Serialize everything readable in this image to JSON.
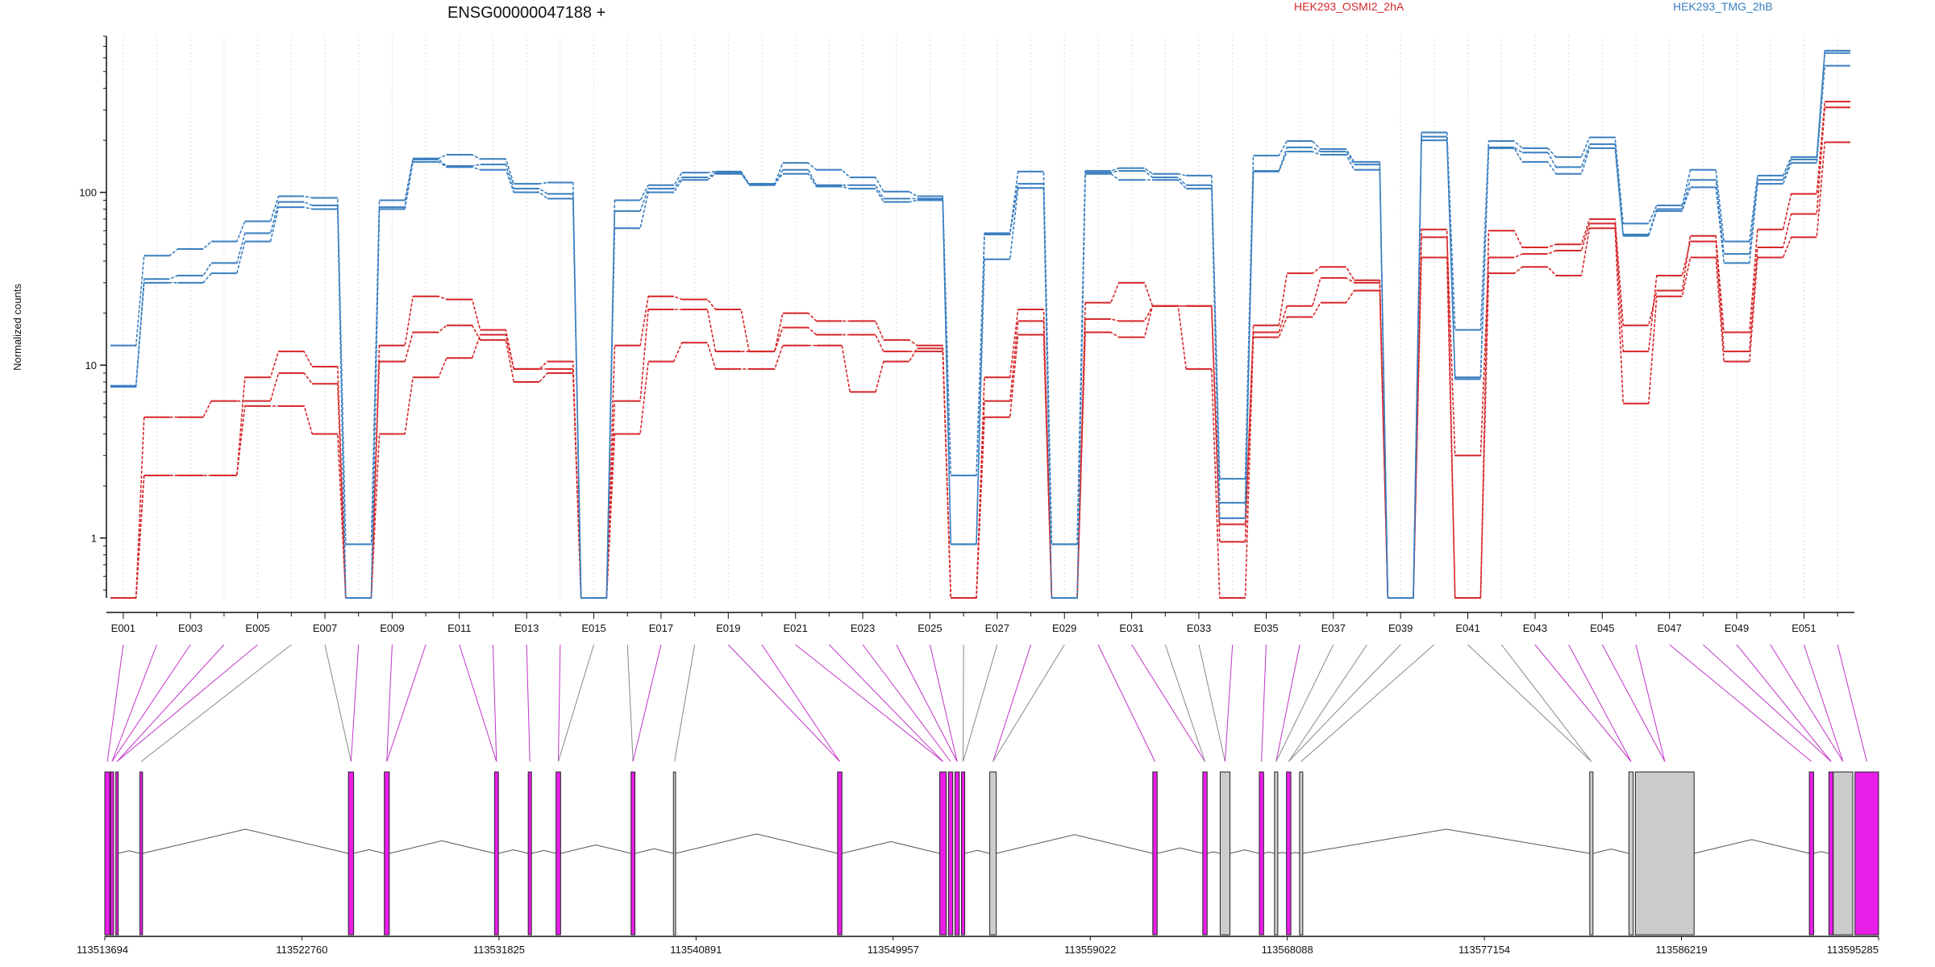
{
  "chart_data": {
    "type": "line",
    "title": "ENSG00000047188 +",
    "ylabel": "Normalized counts",
    "yscale": "log",
    "ylim": [
      0.45,
      800
    ],
    "yticks": [
      1,
      10,
      100
    ],
    "grid": "vertical dotted at exon bins",
    "legend": [
      {
        "name": "HEK293_OSMI2_2hA",
        "color": "#d6282b"
      },
      {
        "name": "HEK293_TMG_2hB",
        "color": "#3b7fc0"
      }
    ],
    "exons": [
      "E001",
      "E002",
      "E003",
      "E004",
      "E005",
      "E006",
      "E007",
      "E008",
      "E009",
      "E010",
      "E011",
      "E012",
      "E013",
      "E014",
      "E015",
      "E016",
      "E017",
      "E018",
      "E019",
      "E020",
      "E021",
      "E022",
      "E023",
      "E024",
      "E025",
      "E026",
      "E027",
      "E028",
      "E029",
      "E030",
      "E031",
      "E032",
      "E033",
      "E034",
      "E035",
      "E036",
      "E037",
      "E038",
      "E039",
      "E040",
      "E041",
      "E042",
      "E043",
      "E044",
      "E045",
      "E046",
      "E047",
      "E048",
      "E049",
      "E050",
      "E051",
      "E052"
    ],
    "exon_labels_shown": [
      "E001",
      "E003",
      "E005",
      "E007",
      "E009",
      "E011",
      "E013",
      "E015",
      "E017",
      "E019",
      "E021",
      "E023",
      "E025",
      "E027",
      "E029",
      "E031",
      "E033",
      "E035",
      "E037",
      "E039",
      "E041",
      "E043",
      "E045",
      "E047",
      "E049",
      "E051"
    ],
    "series": [
      {
        "group": "HEK293_OSMI2_2hA",
        "color": "#d6282b",
        "values": [
          0.45,
          2.3,
          2.3,
          2.3,
          5.8,
          5.8,
          4.0,
          0.45,
          4.0,
          8.5,
          11.0,
          15.0,
          9.5,
          9.5,
          0.45,
          4.0,
          10.5,
          13.5,
          9.5,
          9.5,
          13.0,
          13.0,
          7.0,
          10.5,
          12.5,
          0.45,
          5.0,
          15.0,
          0.45,
          15.5,
          14.5,
          22.0,
          9.5,
          0.45,
          14.5,
          19.0,
          23.0,
          27.0,
          0.45,
          42.0,
          0.45,
          34.0,
          37.0,
          33.0,
          62.0,
          6.0,
          25.0,
          42.0,
          10.5,
          42.0,
          55.0,
          195.0
        ]
      },
      {
        "group": "HEK293_OSMI2_2hA",
        "color": "#d6282b",
        "values": [
          0.45,
          5.0,
          5.0,
          6.2,
          6.2,
          9.0,
          7.8,
          0.45,
          10.5,
          15.5,
          17.0,
          14.0,
          8.0,
          9.0,
          0.45,
          6.2,
          21.0,
          21.0,
          12.0,
          12.0,
          16.5,
          15.0,
          15.0,
          12.0,
          12.0,
          0.45,
          6.2,
          18.0,
          0.45,
          18.5,
          18.0,
          22.0,
          22.0,
          1.2,
          15.5,
          22.0,
          32.0,
          30.0,
          0.45,
          55.0,
          3.0,
          42.0,
          44.0,
          46.0,
          66.0,
          12.0,
          33.0,
          52.0,
          12.0,
          48.0,
          75.0,
          310.0
        ]
      },
      {
        "group": "HEK293_OSMI2_2hA",
        "color": "#d6282b",
        "values": [
          0.45,
          2.3,
          2.3,
          2.3,
          8.5,
          12.0,
          9.8,
          0.45,
          13.0,
          25.0,
          24.0,
          16.0,
          9.5,
          10.5,
          0.45,
          13.0,
          25.0,
          24.0,
          21.0,
          12.0,
          20.0,
          18.0,
          18.0,
          14.0,
          13.0,
          0.45,
          8.5,
          21.0,
          0.45,
          23.0,
          30.0,
          22.0,
          22.0,
          0.95,
          17.0,
          34.0,
          37.0,
          31.0,
          0.45,
          61.0,
          0.45,
          60.0,
          48.0,
          50.0,
          70.0,
          17.0,
          27.0,
          56.0,
          15.5,
          61.0,
          98.0,
          335.0
        ]
      },
      {
        "group": "HEK293_TMG_2hB",
        "color": "#3b7fc0",
        "values": [
          7.5,
          30.0,
          30.0,
          34.0,
          52.0,
          82.0,
          80.0,
          0.45,
          80.0,
          150.0,
          140.0,
          135.0,
          100.0,
          92.0,
          0.45,
          62.0,
          100.0,
          118.0,
          128.0,
          112.0,
          128.0,
          108.0,
          105.0,
          88.0,
          90.0,
          0.92,
          41.0,
          106.0,
          0.45,
          128.0,
          118.0,
          118.0,
          105.0,
          1.3,
          132.0,
          172.0,
          165.0,
          135.0,
          0.45,
          200.0,
          8.3,
          180.0,
          150.0,
          128.0,
          180.0,
          56.0,
          78.0,
          107.0,
          39.0,
          112.0,
          148.0,
          540.0
        ]
      },
      {
        "group": "HEK293_TMG_2hB",
        "color": "#3b7fc0",
        "values": [
          7.6,
          31.5,
          33.0,
          39.0,
          58.0,
          88.0,
          84.0,
          0.45,
          82.0,
          155.0,
          142.0,
          145.0,
          105.0,
          98.0,
          0.45,
          78.0,
          105.0,
          122.0,
          130.0,
          110.0,
          135.0,
          110.0,
          110.0,
          92.0,
          92.0,
          0.92,
          57.0,
          112.0,
          0.92,
          130.0,
          133.0,
          122.0,
          110.0,
          1.6,
          133.0,
          182.0,
          172.0,
          145.0,
          0.45,
          210.0,
          8.5,
          182.0,
          170.0,
          140.0,
          190.0,
          57.0,
          80.0,
          118.0,
          44.0,
          118.0,
          155.0,
          640.0
        ]
      },
      {
        "group": "HEK293_TMG_2hB",
        "color": "#3b7fc0",
        "values": [
          13.0,
          43.0,
          47.0,
          52.0,
          68.0,
          95.0,
          93.0,
          0.92,
          90.0,
          157.0,
          165.0,
          156.0,
          112.0,
          114.0,
          0.45,
          90.0,
          110.0,
          130.0,
          132.0,
          112.0,
          148.0,
          135.0,
          122.0,
          101.0,
          95.0,
          2.3,
          58.0,
          132.0,
          0.92,
          133.0,
          138.0,
          128.0,
          125.0,
          2.2,
          163.0,
          198.0,
          178.0,
          150.0,
          0.45,
          222.0,
          16.0,
          198.0,
          180.0,
          160.0,
          208.0,
          66.0,
          84.0,
          135.0,
          52.0,
          125.0,
          160.0,
          660.0
        ]
      }
    ],
    "junction_colors": [
      "#c233c8",
      "#c233c8",
      "#c233c8",
      "#c233c8",
      "#c233c8",
      "#888888",
      "#888888",
      "#c233c8",
      "#c233c8",
      "#c233c8",
      "#c233c8",
      "#c233c8",
      "#c233c8",
      "#c233c8",
      "#888888",
      "#888888",
      "#c233c8",
      "#888888",
      "#c233c8",
      "#c233c8",
      "#c233c8",
      "#c233c8",
      "#c233c8",
      "#c233c8",
      "#c233c8",
      "#888888",
      "#888888",
      "#c233c8",
      "#888888",
      "#c233c8",
      "#c233c8",
      "#888888",
      "#888888",
      "#c233c8",
      "#c233c8",
      "#c233c8",
      "#888888",
      "#888888",
      "#888888",
      "#888888",
      "#888888",
      "#888888",
      "#c233c8",
      "#c233c8",
      "#c233c8",
      "#c233c8",
      "#c233c8",
      "#c233c8",
      "#c233c8",
      "#c233c8",
      "#c233c8",
      "#c233c8"
    ],
    "genomic_axis": {
      "range": [
        113513694,
        113595285
      ],
      "tick_labels": [
        "113513694",
        "113522760",
        "113531825",
        "113540891",
        "113549957",
        "113559022",
        "113568088",
        "113577154",
        "113586219",
        "113595285"
      ]
    },
    "exon_track": [
      {
        "start": 113513694,
        "end": 113513930,
        "fill": "#e81de8"
      },
      {
        "start": 113513950,
        "end": 113514100,
        "fill": "#e81de8"
      },
      {
        "start": 113514200,
        "end": 113514310,
        "fill": "#e81de8"
      },
      {
        "start": 113515310,
        "end": 113515430,
        "fill": "#e81de8"
      },
      {
        "start": 113524900,
        "end": 113525140,
        "fill": "#e81de8"
      },
      {
        "start": 113526550,
        "end": 113526780,
        "fill": "#e81de8"
      },
      {
        "start": 113531620,
        "end": 113531800,
        "fill": "#e81de8"
      },
      {
        "start": 113533170,
        "end": 113533320,
        "fill": "#e81de8"
      },
      {
        "start": 113534450,
        "end": 113534660,
        "fill": "#e81de8"
      },
      {
        "start": 113537900,
        "end": 113538080,
        "fill": "#e81de8"
      },
      {
        "start": 113539850,
        "end": 113539950,
        "fill": "#cccccc"
      },
      {
        "start": 113547400,
        "end": 113547600,
        "fill": "#e81de8"
      },
      {
        "start": 113552100,
        "end": 113552400,
        "fill": "#e81de8"
      },
      {
        "start": 113552500,
        "end": 113552700,
        "fill": "#e81de8"
      },
      {
        "start": 113552800,
        "end": 113553000,
        "fill": "#e81de8"
      },
      {
        "start": 113553100,
        "end": 113553250,
        "fill": "#e81de8"
      },
      {
        "start": 113554400,
        "end": 113554700,
        "fill": "#cccccc"
      },
      {
        "start": 113561900,
        "end": 113562100,
        "fill": "#e81de8"
      },
      {
        "start": 113564200,
        "end": 113564400,
        "fill": "#e81de8"
      },
      {
        "start": 113565000,
        "end": 113565450,
        "fill": "#cccccc"
      },
      {
        "start": 113566800,
        "end": 113567000,
        "fill": "#e81de8"
      },
      {
        "start": 113567500,
        "end": 113567650,
        "fill": "#cccccc"
      },
      {
        "start": 113568050,
        "end": 113568250,
        "fill": "#e81de8"
      },
      {
        "start": 113568650,
        "end": 113568800,
        "fill": "#cccccc"
      },
      {
        "start": 113582000,
        "end": 113582150,
        "fill": "#cccccc"
      },
      {
        "start": 113583800,
        "end": 113584000,
        "fill": "#cccccc"
      },
      {
        "start": 113584100,
        "end": 113586800,
        "fill": "#cccccc"
      },
      {
        "start": 113592100,
        "end": 113592300,
        "fill": "#e81de8"
      },
      {
        "start": 113593000,
        "end": 113593200,
        "fill": "#e81de8"
      },
      {
        "start": 113593200,
        "end": 113594100,
        "fill": "#cccccc"
      },
      {
        "start": 113594200,
        "end": 113595285,
        "fill": "#e81de8"
      }
    ]
  }
}
